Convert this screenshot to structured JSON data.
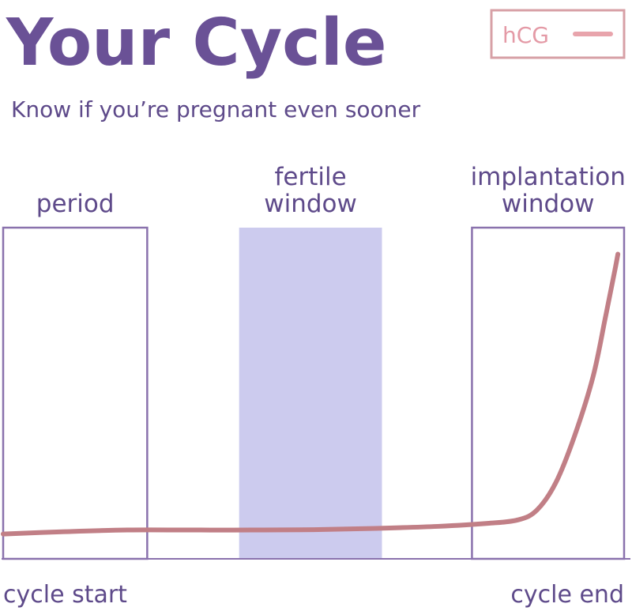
{
  "chart_data": {
    "type": "line",
    "title": "Your Cycle",
    "subtitle": "Know if you’re pregnant even sooner",
    "legend": {
      "label": "hCG",
      "placement": "top-right"
    },
    "xlabel_start": "cycle start",
    "xlabel_end": "cycle end",
    "xlim": [
      0,
      1
    ],
    "ylim": [
      0,
      1
    ],
    "regions": [
      {
        "label_lines": [
          "period"
        ],
        "start": 0.0,
        "end": 0.232,
        "style": "outline"
      },
      {
        "label_lines": [
          "fertile",
          "window"
        ],
        "start": 0.38,
        "end": 0.61,
        "style": "filled"
      },
      {
        "label_lines": [
          "implantation",
          "window"
        ],
        "start": 0.755,
        "end": 1.0,
        "style": "outline"
      }
    ],
    "series": [
      {
        "values": [
          [
            0.0,
            0.075
          ],
          [
            0.1,
            0.082
          ],
          [
            0.2,
            0.087
          ],
          [
            0.3,
            0.087
          ],
          [
            0.4,
            0.087
          ],
          [
            0.5,
            0.088
          ],
          [
            0.6,
            0.092
          ],
          [
            0.7,
            0.098
          ],
          [
            0.78,
            0.107
          ],
          [
            0.83,
            0.118
          ],
          [
            0.86,
            0.148
          ],
          [
            0.89,
            0.23
          ],
          [
            0.92,
            0.37
          ],
          [
            0.95,
            0.55
          ],
          [
            0.97,
            0.73
          ],
          [
            0.985,
            0.87
          ],
          [
            0.99,
            0.92
          ]
        ]
      }
    ],
    "colors": {
      "title": "#6a5196",
      "text": "#5e4a8a",
      "frame": "#8a72ad",
      "fertile_fill": "#cccbee",
      "curve": "#c17f86",
      "legend_border": "#d7a0a6",
      "legend_text": "#e49aa6",
      "legend_swatch": "#e8a4ac"
    }
  }
}
